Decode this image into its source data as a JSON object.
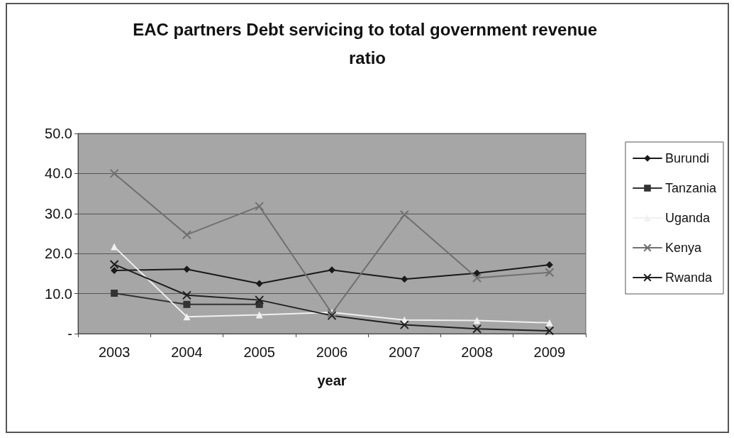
{
  "chart_data": {
    "type": "line",
    "title": "EAC partners Debt servicing to total government revenue ratio",
    "xlabel": "year",
    "categories": [
      "2003",
      "2004",
      "2005",
      "2006",
      "2007",
      "2008",
      "2009"
    ],
    "series": [
      {
        "name": "Burundi",
        "color": "#1a1a1a",
        "marker": "diamond",
        "values": [
          15.8,
          16.1,
          12.5,
          15.9,
          13.6,
          15.1,
          17.2
        ]
      },
      {
        "name": "Tanzania",
        "color": "#333333",
        "marker": "square",
        "values": [
          10.1,
          7.3,
          7.3,
          null,
          null,
          null,
          null
        ]
      },
      {
        "name": "Uganda",
        "color": "#f0f0f0",
        "marker": "triangle",
        "values": [
          21.7,
          4.2,
          4.7,
          5.3,
          3.4,
          3.3,
          2.7
        ]
      },
      {
        "name": "Kenya",
        "color": "#707070",
        "marker": "cross",
        "values": [
          40.0,
          24.7,
          31.8,
          5.1,
          29.7,
          13.9,
          15.3
        ]
      },
      {
        "name": "Rwanda",
        "color": "#202020",
        "marker": "cross",
        "values": [
          17.3,
          9.6,
          8.4,
          4.5,
          2.2,
          1.2,
          0.7
        ]
      }
    ],
    "ylim": [
      0,
      50
    ],
    "yticks": [
      {
        "value": 0,
        "label": "-"
      },
      {
        "value": 10,
        "label": "10.0"
      },
      {
        "value": 20,
        "label": "20.0"
      },
      {
        "value": 30,
        "label": "30.0"
      },
      {
        "value": 40,
        "label": "40.0"
      },
      {
        "value": 50,
        "label": "50.0"
      }
    ],
    "grid": "y",
    "legend": "right",
    "line_style": "solid"
  }
}
